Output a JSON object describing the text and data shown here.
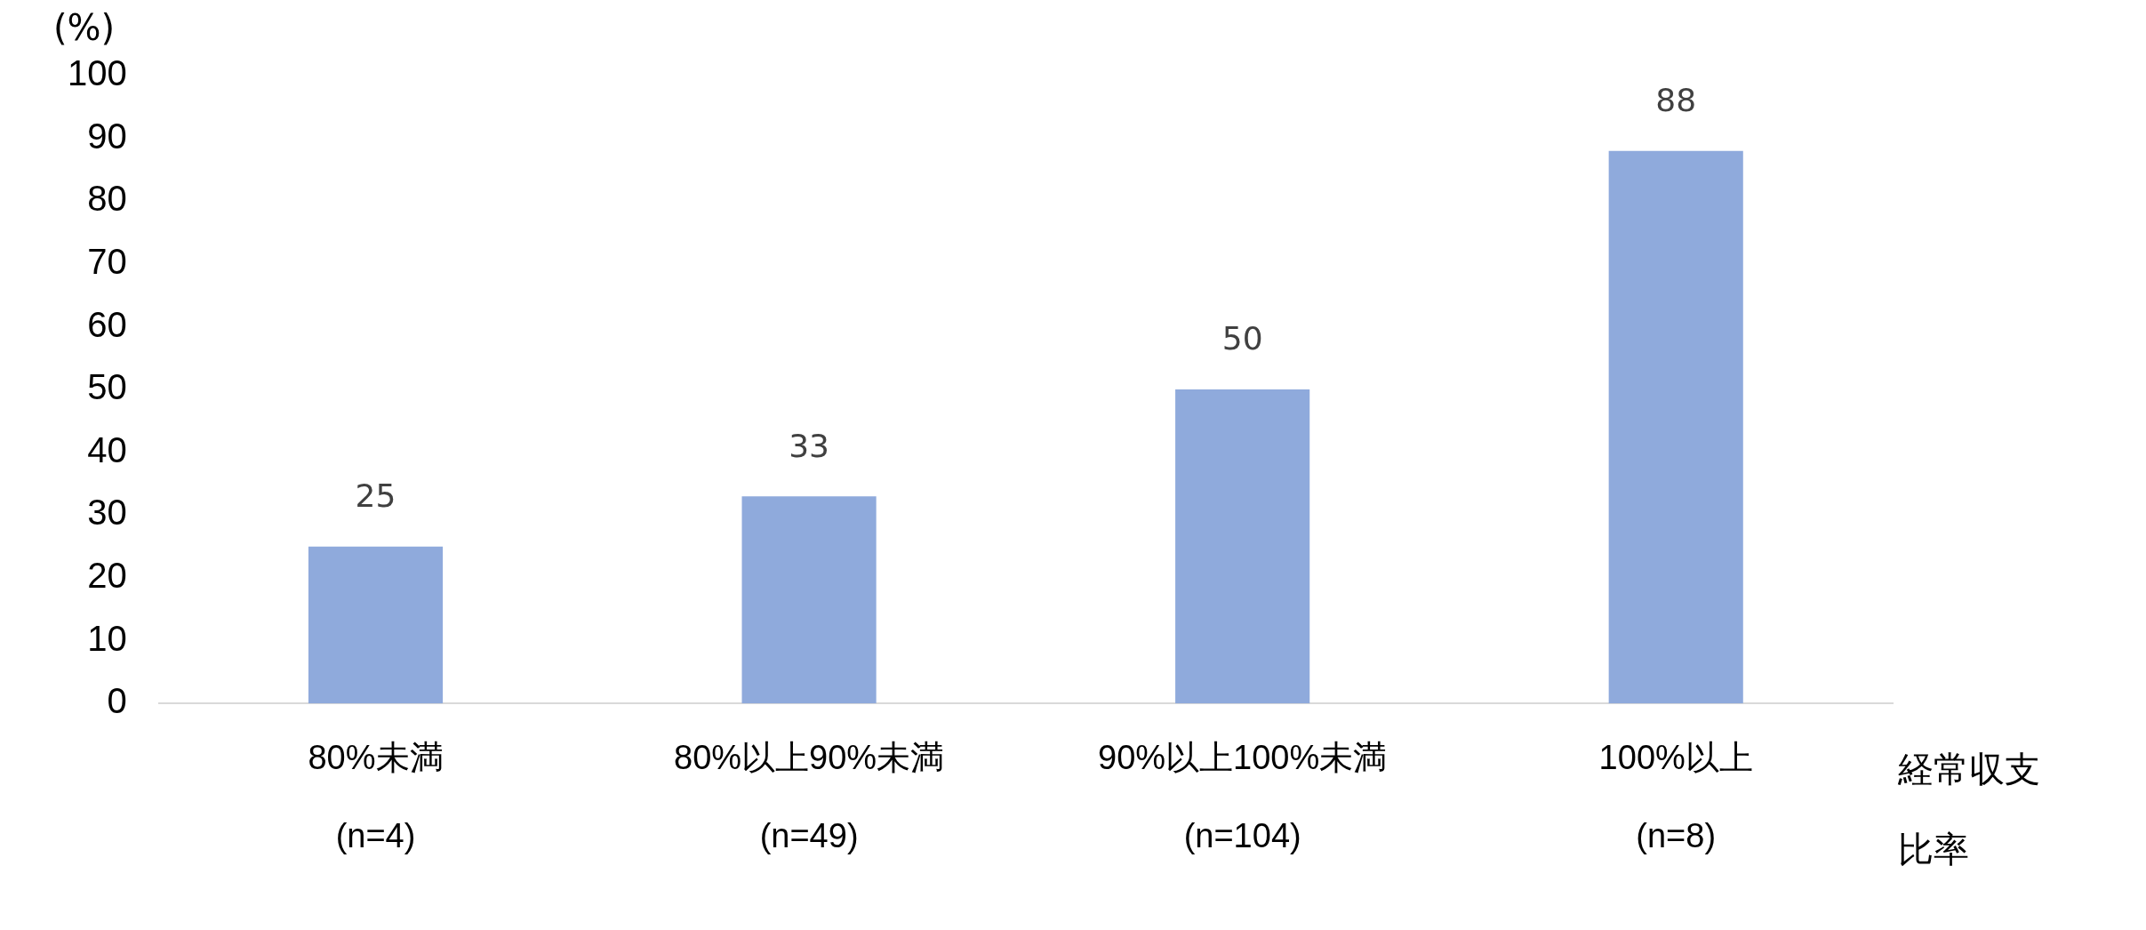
{
  "chart_data": {
    "type": "bar",
    "ylabel": "(%)",
    "xlabel": "経常収支比率",
    "categories": [
      "80%未満\n(n=4)",
      "80%以上90%未満\n(n=49)",
      "90%以上100%未満\n(n=104)",
      "100%以上\n(n=8)"
    ],
    "values": [
      25,
      33,
      50,
      88
    ],
    "color": "#8faadc",
    "ylim": [
      0,
      100
    ],
    "yticks": [
      0,
      10,
      20,
      30,
      40,
      50,
      60,
      70,
      80,
      90,
      100
    ],
    "grid": false,
    "data_labels": true
  }
}
